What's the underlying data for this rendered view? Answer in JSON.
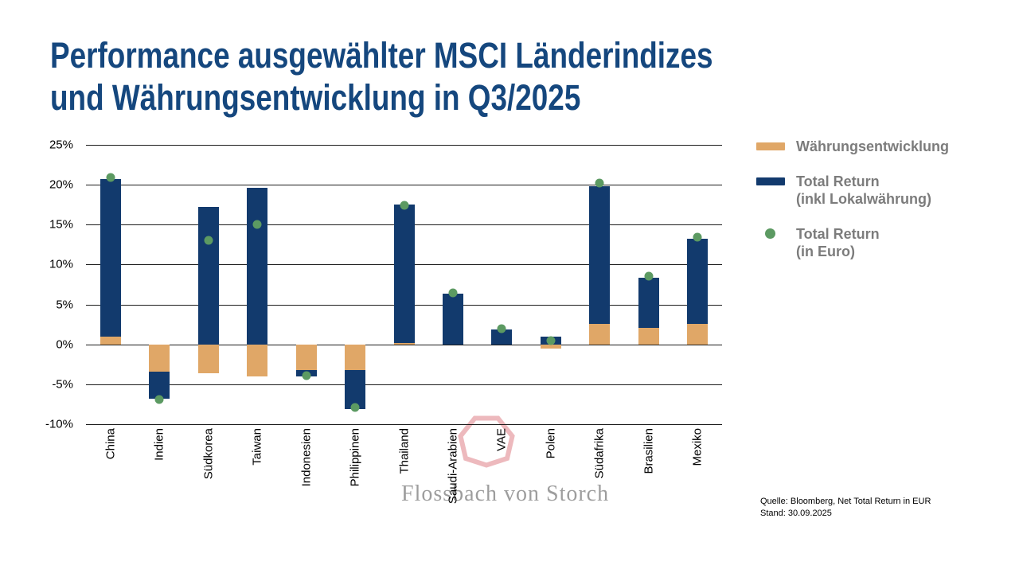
{
  "title": {
    "line1": "Performance ausgewählter MSCI Länderindizes",
    "line2": "und Währungsentwicklung in Q3/2025"
  },
  "legend": {
    "items": [
      {
        "type": "bar",
        "color": "#E0A767",
        "lines": [
          "Währungsentwicklung"
        ]
      },
      {
        "type": "bar",
        "color": "#123A6D",
        "lines": [
          "Total Return",
          "(inkl Lokalwährung)"
        ]
      },
      {
        "type": "dot",
        "color": "#5C9A62",
        "lines": [
          "Total Return",
          "(in Euro)"
        ]
      }
    ]
  },
  "watermark": {
    "text": "Flossbach von Storch",
    "shape": "heptagon-outline",
    "shape_color": "#EDB9BD"
  },
  "source": {
    "line1": "Quelle: Bloomberg, Net Total Return in EUR",
    "line2": "Stand: 30.09.2025"
  },
  "chart_data": {
    "type": "bar",
    "title": "Performance ausgewählter MSCI Länderindizes und Währungsentwicklung in Q3/2025",
    "stacking": "currency-plus-local-return, same-sign segments stack, opposite signs start at zero",
    "categories": [
      "China",
      "Indien",
      "Südkorea",
      "Taiwan",
      "Indonesien",
      "Philippinen",
      "Thailand",
      "Saudi-Arabien",
      "VAE",
      "Polen",
      "Südafrika",
      "Brasilien",
      "Mexiko"
    ],
    "series": [
      {
        "name": "Währungsentwicklung",
        "kind": "bar",
        "color": "#E0A767",
        "values": [
          1.0,
          -3.4,
          -3.6,
          -4.0,
          -3.2,
          -3.2,
          0.2,
          0.0,
          0.0,
          -0.5,
          2.6,
          2.1,
          2.6
        ]
      },
      {
        "name": "Total Return (inkl Lokalwährung)",
        "kind": "bar",
        "color": "#123A6D",
        "values": [
          19.7,
          -3.4,
          17.2,
          19.6,
          -0.8,
          -4.9,
          17.3,
          6.4,
          1.9,
          1.0,
          17.2,
          6.2,
          10.6
        ]
      },
      {
        "name": "Total Return (in Euro)",
        "kind": "point",
        "color": "#5C9A62",
        "values": [
          20.9,
          -6.9,
          13.0,
          15.0,
          -3.9,
          -7.9,
          17.4,
          6.5,
          2.0,
          0.5,
          20.2,
          8.5,
          13.4
        ]
      }
    ],
    "ylabel": "",
    "xlabel": "",
    "ylim": [
      -10,
      25
    ],
    "ytick_step": 5,
    "ytick_format": "percent",
    "yticks": [
      "25%",
      "20%",
      "15%",
      "10%",
      "5%",
      "0%",
      "-5%",
      "-10%"
    ],
    "grid": "horizontal",
    "legend_position": "right"
  }
}
